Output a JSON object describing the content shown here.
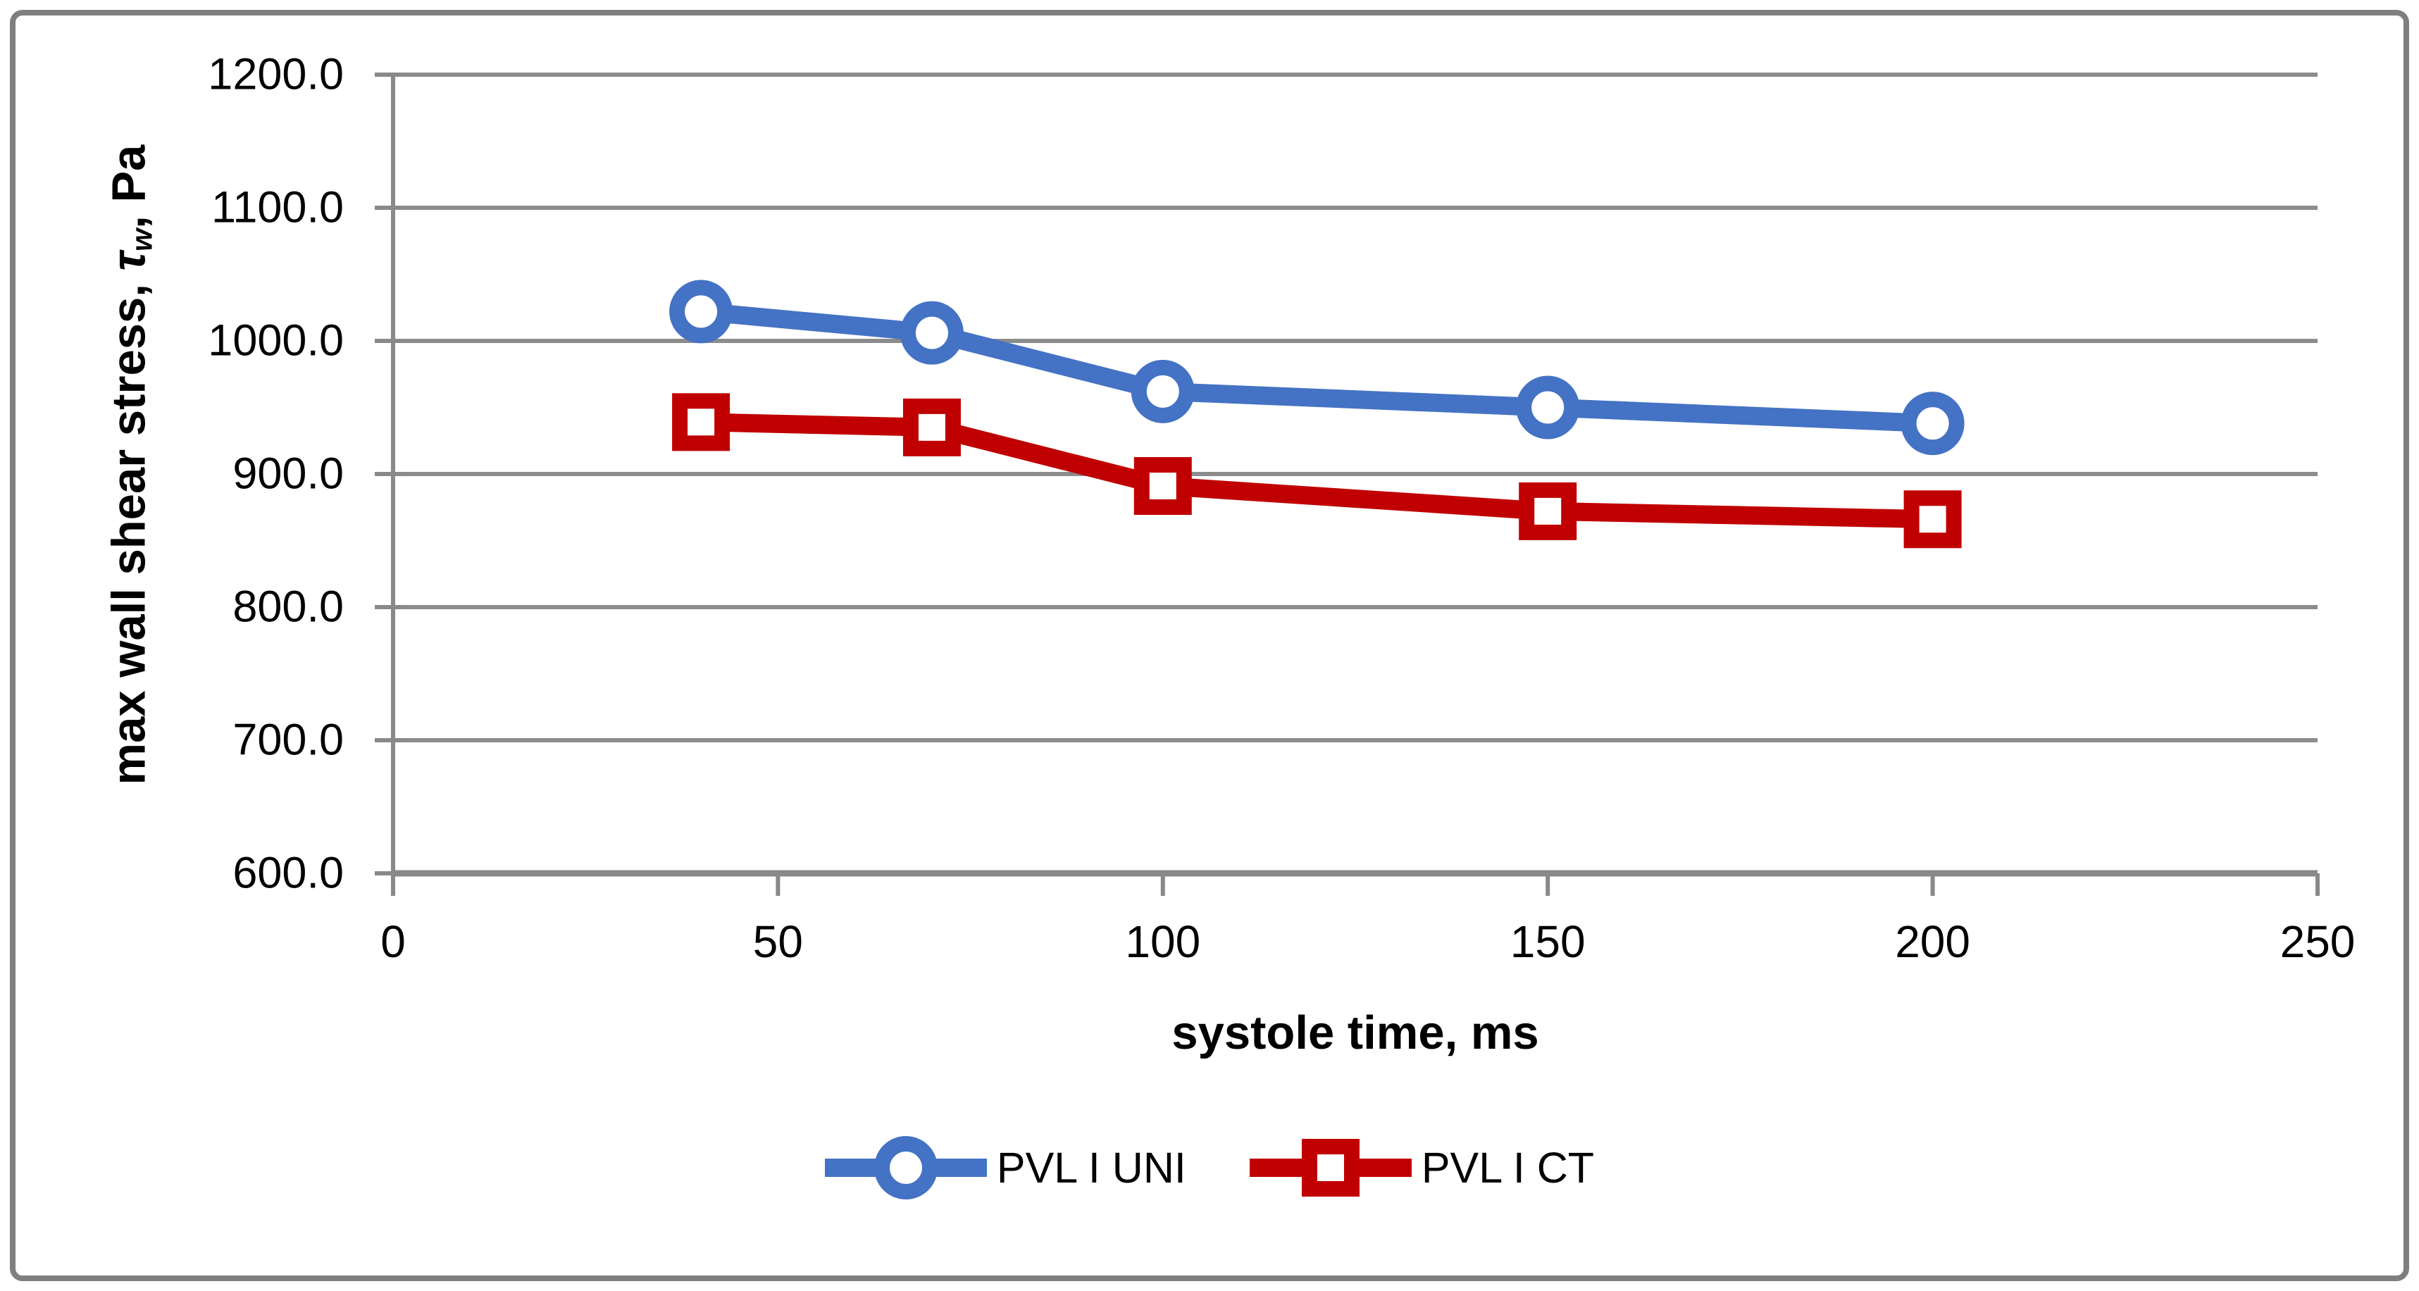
{
  "figure": {
    "border_color": "#7F7F7F",
    "background": "#FFFFFF"
  },
  "chart_data": {
    "type": "line",
    "title": "",
    "xlabel": "systole time, ms",
    "ylabel": "max wall shear stress, τw, Pa",
    "ylabel_parts": {
      "before": "max wall shear stress, ",
      "tau": "τ",
      "sub": "w",
      "after": ", Pa"
    },
    "xlim": [
      0,
      250
    ],
    "ylim": [
      600,
      1200
    ],
    "x_ticks": {
      "values": [
        0,
        50,
        100,
        150,
        200,
        250
      ],
      "labels": [
        "0",
        "50",
        "100",
        "150",
        "200",
        "250"
      ]
    },
    "y_ticks": {
      "values": [
        1200,
        1100,
        1000,
        900,
        800,
        700,
        600
      ],
      "labels": [
        "1200.0",
        "1100.0",
        "1000.0",
        "900.0",
        "800.0",
        "700.0",
        "600.0"
      ]
    },
    "grid": "horizontal-only",
    "legend_position": "bottom-center",
    "series": [
      {
        "name": "PVL I UNI",
        "color": "#4472C4",
        "marker": "circle",
        "x": [
          40,
          70,
          100,
          150,
          200
        ],
        "values": [
          1022,
          1006,
          962,
          950,
          938
        ]
      },
      {
        "name": "PVL I CT",
        "color": "#C00000",
        "marker": "square",
        "x": [
          40,
          70,
          100,
          150,
          200
        ],
        "values": [
          939,
          935,
          891,
          872,
          866
        ]
      }
    ],
    "colors": {
      "gridline": "#8C8C8C",
      "axis_line": "#898989",
      "text": "#000000",
      "marker_fill": "#FFFFFF"
    }
  }
}
